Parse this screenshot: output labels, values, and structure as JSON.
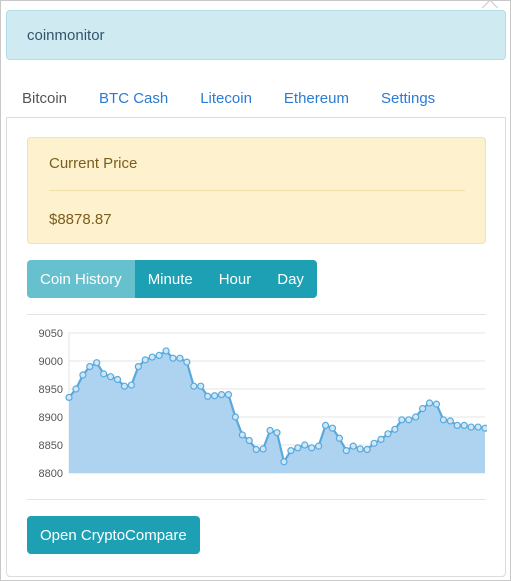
{
  "app": {
    "title": "coinmonitor"
  },
  "tabs": [
    {
      "label": "Bitcoin",
      "active": true
    },
    {
      "label": "BTC Cash",
      "active": false
    },
    {
      "label": "Litecoin",
      "active": false
    },
    {
      "label": "Ethereum",
      "active": false
    },
    {
      "label": "Settings",
      "active": false
    }
  ],
  "price": {
    "label": "Current Price",
    "value": "$8878.87"
  },
  "range_buttons": [
    {
      "label": "Coin History",
      "active": true
    },
    {
      "label": "Minute",
      "active": false
    },
    {
      "label": "Hour",
      "active": false
    },
    {
      "label": "Day",
      "active": false
    }
  ],
  "cta": {
    "label": "Open CryptoCompare"
  },
  "colors": {
    "accent": "#1ea0b4",
    "accent_active": "#66c0ce",
    "line": "#5aa9dc",
    "fill": "#add3f0"
  },
  "chart_data": {
    "type": "area",
    "title": "",
    "xlabel": "",
    "ylabel": "",
    "ylim": [
      8800,
      9050
    ],
    "yticks": [
      8800,
      8850,
      8900,
      8950,
      9000,
      9050
    ],
    "grid": true,
    "legend": "none",
    "series": [
      {
        "values": [
          8935,
          8950,
          8975,
          8990,
          8997,
          8977,
          8972,
          8967,
          8955,
          8957,
          8990,
          9002,
          9007,
          9010,
          9018,
          9005,
          9005,
          8998,
          8955,
          8955,
          8937,
          8938,
          8940,
          8940,
          8900,
          8868,
          8858,
          8842,
          8843,
          8876,
          8872,
          8820,
          8840,
          8845,
          8850,
          8845,
          8848,
          8885,
          8880,
          8862,
          8840,
          8848,
          8843,
          8842,
          8853,
          8860,
          8870,
          8878,
          8895,
          8895,
          8900,
          8915,
          8925,
          8923,
          8895,
          8893,
          8885,
          8885,
          8882,
          8882,
          8880
        ]
      }
    ]
  }
}
